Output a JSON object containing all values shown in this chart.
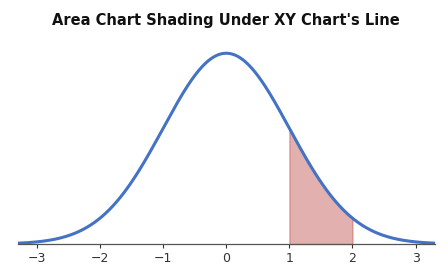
{
  "title": "Area Chart Shading Under XY Chart's Line",
  "title_fontsize": 10.5,
  "xlim": [
    -3.3,
    3.3
  ],
  "ylim": [
    -0.005,
    0.44
  ],
  "xticks": [
    -3,
    -2,
    -1,
    0,
    1,
    2,
    3
  ],
  "shade_from": 1,
  "shade_to": 2,
  "line_color": "#4472C4",
  "shade_color": "#C0504D",
  "shade_alpha": 0.45,
  "line_width": 2.2,
  "background_color": "#FFFFFF",
  "mean": 0,
  "std": 1,
  "tick_labelsize": 9
}
